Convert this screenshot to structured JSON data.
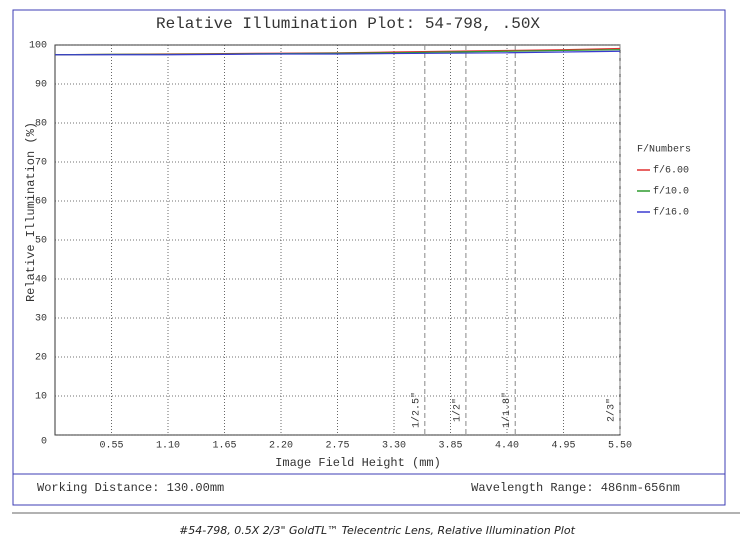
{
  "chart_data": {
    "type": "line",
    "title": "Relative Illumination Plot: 54-798, .50X",
    "x_label": "Image Field Height (mm)",
    "y_label": "Relative Illumination (%)",
    "xlim": [
      0,
      5.5
    ],
    "ylim": [
      0,
      100
    ],
    "xticks": [
      0.55,
      {
        "value": 1.1,
        "label": "1.10"
      },
      1.65,
      {
        "value": 2.2,
        "label": "2.20"
      },
      2.75,
      {
        "value": 3.3,
        "label": "3.30"
      },
      3.85,
      {
        "value": 4.4,
        "label": "4.40"
      },
      4.95,
      {
        "value": 5.5,
        "label": "5.50"
      }
    ],
    "yticks": [
      0,
      10,
      20,
      30,
      40,
      50,
      60,
      70,
      80,
      90,
      100
    ],
    "grid": true,
    "legend_title": "F/Numbers",
    "legend_position": "right",
    "x": [
      0,
      0.55,
      1.1,
      1.65,
      2.2,
      2.75,
      3.3,
      3.85,
      4.4,
      4.95,
      5.5
    ],
    "series": [
      {
        "name": "f/6.00",
        "color": "#e03030",
        "values": [
          97.5,
          97.6,
          97.7,
          97.8,
          97.9,
          98.0,
          98.2,
          98.4,
          98.6,
          98.8,
          99.1
        ]
      },
      {
        "name": "f/10.0",
        "color": "#2e9a2e",
        "values": [
          97.5,
          97.6,
          97.6,
          97.7,
          97.8,
          97.9,
          98.0,
          98.2,
          98.4,
          98.6,
          98.8
        ]
      },
      {
        "name": "f/16.0",
        "color": "#3a3ad0",
        "values": [
          97.5,
          97.5,
          97.5,
          97.6,
          97.7,
          97.7,
          97.8,
          97.9,
          98.0,
          98.2,
          98.4
        ]
      }
    ],
    "markers": [
      {
        "value": 3.6,
        "label": "1/2.5\""
      },
      {
        "value": 4.0,
        "label": "1/2\""
      },
      {
        "value": 4.48,
        "label": "1/1.8\""
      },
      {
        "value": 5.5,
        "label": "2/3\""
      }
    ]
  },
  "footer": {
    "left": "Working Distance: 130.00mm",
    "right": "Wavelength Range: 486nm-656nm"
  },
  "caption": "#54-798, 0.5X 2/3\" GoldTL™ Telecentric Lens, Relative Illumination Plot"
}
